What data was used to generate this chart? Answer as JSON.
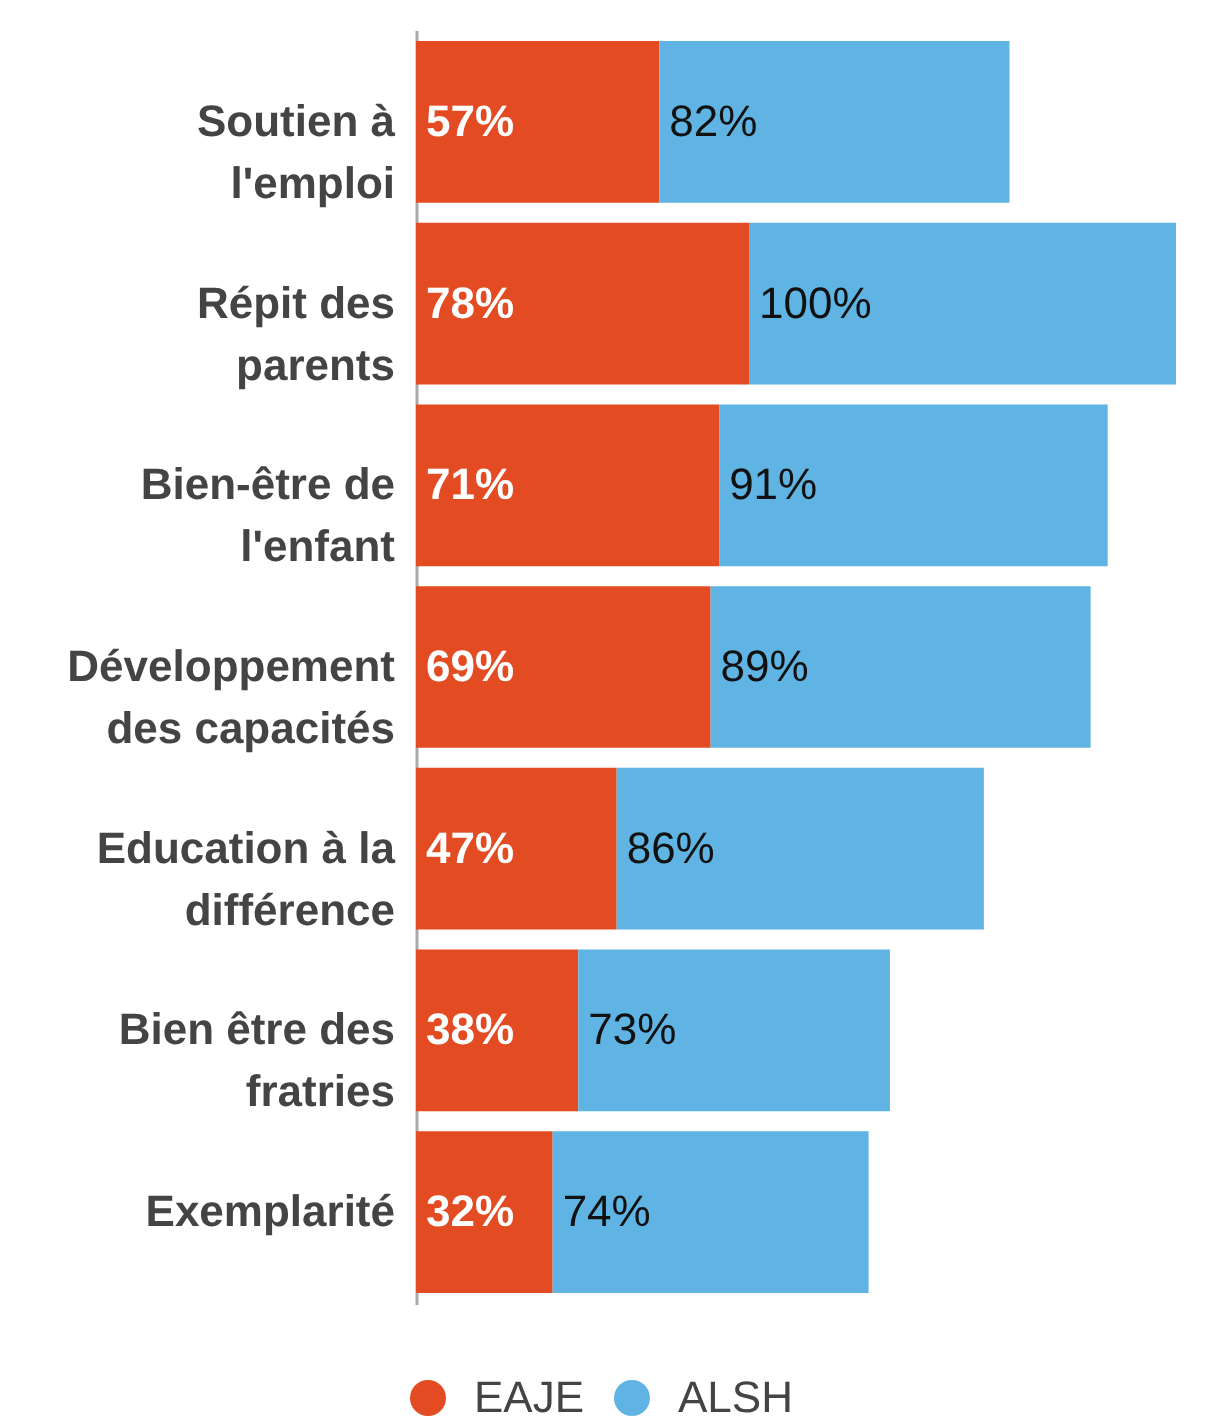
{
  "chart_data": {
    "type": "bar",
    "orientation": "horizontal",
    "stacked": true,
    "categories": [
      "Soutien à l'emploi",
      "Répit des parents",
      "Bien-être de l'enfant",
      "Développement des capacités",
      "Education à la différence",
      "Bien être des fratries",
      "Exemplarité"
    ],
    "series": [
      {
        "name": "EAJE",
        "color": "#e34c22",
        "values": [
          57,
          78,
          71,
          69,
          47,
          38,
          32
        ],
        "value_labels": [
          "57%",
          "78%",
          "71%",
          "69%",
          "47%",
          "38%",
          "32%"
        ]
      },
      {
        "name": "ALSH",
        "color": "#5fb4e3",
        "values": [
          82,
          100,
          91,
          89,
          86,
          73,
          74
        ],
        "value_labels": [
          "82%",
          "100%",
          "91%",
          "89%",
          "86%",
          "73%",
          "74%"
        ]
      }
    ],
    "legend": "bottom",
    "tick_labels": "y"
  }
}
